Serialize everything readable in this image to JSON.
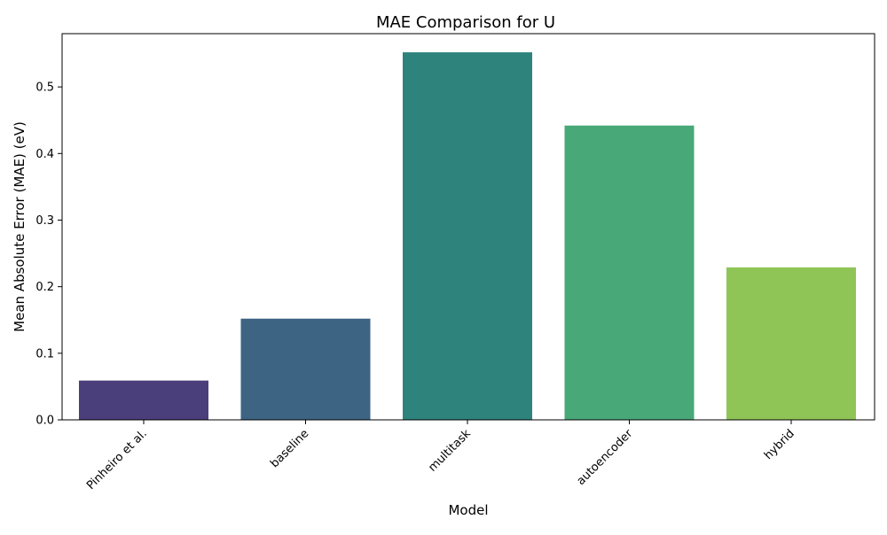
{
  "chart_data": {
    "type": "bar",
    "title": "MAE Comparison for U",
    "xlabel": "Model",
    "ylabel": "Mean Absolute Error (MAE) (eV)",
    "categories": [
      "Pinheiro et al.",
      "baseline",
      "multitask",
      "autoencoder",
      "hybrid"
    ],
    "values": [
      0.059,
      0.152,
      0.552,
      0.442,
      0.229
    ],
    "colors": [
      "#4a3f7b",
      "#3e6484",
      "#2e847d",
      "#48a878",
      "#8fc556"
    ],
    "ylim": [
      0,
      0.58
    ],
    "yticks": [
      "0.0",
      "0.1",
      "0.2",
      "0.3",
      "0.4",
      "0.5"
    ],
    "grid": false,
    "legend": "none"
  }
}
